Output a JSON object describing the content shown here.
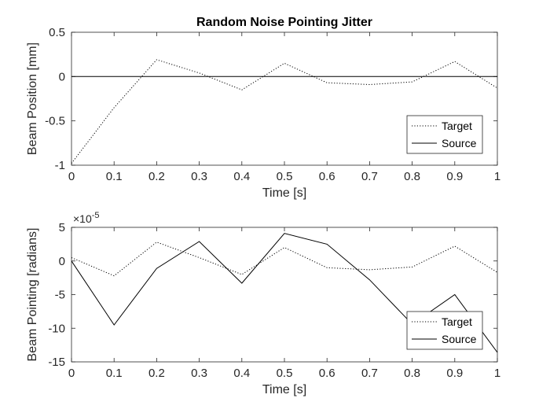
{
  "chart_data": [
    {
      "type": "line",
      "title": "Random Noise Pointing Jitter",
      "xlabel": "Time [s]",
      "ylabel": "Beam Position [mm]",
      "xlim": [
        0,
        1
      ],
      "ylim": [
        -1,
        0.5
      ],
      "xticks": [
        "0",
        "0.1",
        "0.2",
        "0.3",
        "0.4",
        "0.5",
        "0.6",
        "0.7",
        "0.8",
        "0.9",
        "1"
      ],
      "yticks": [
        "-1",
        "-0.5",
        "0",
        "0.5"
      ],
      "x": [
        0,
        0.1,
        0.2,
        0.3,
        0.4,
        0.5,
        0.6,
        0.7,
        0.8,
        0.9,
        1.0
      ],
      "series": [
        {
          "name": "Target",
          "style": "dotted",
          "values": [
            -0.98,
            -0.35,
            0.19,
            0.04,
            -0.15,
            0.15,
            -0.07,
            -0.09,
            -0.06,
            0.17,
            -0.13
          ]
        },
        {
          "name": "Source",
          "style": "solid",
          "values": [
            0,
            0,
            0,
            0,
            0,
            0,
            0,
            0,
            0,
            0,
            0
          ]
        }
      ],
      "legend": {
        "position": "bottom-right",
        "entries": [
          "Target",
          "Source"
        ]
      },
      "grid": false
    },
    {
      "type": "line",
      "title": "",
      "xlabel": "Time [s]",
      "ylabel": "Beam Pointing [radians]",
      "y_exponent_label": "×10",
      "y_exponent_power": "-5",
      "xlim": [
        0,
        1
      ],
      "ylim": [
        -15,
        5
      ],
      "xticks": [
        "0",
        "0.1",
        "0.2",
        "0.3",
        "0.4",
        "0.5",
        "0.6",
        "0.7",
        "0.8",
        "0.9",
        "1"
      ],
      "yticks": [
        "-15",
        "-10",
        "-5",
        "0",
        "5"
      ],
      "x": [
        0,
        0.1,
        0.2,
        0.3,
        0.4,
        0.5,
        0.6,
        0.7,
        0.8,
        0.9,
        1.0
      ],
      "series": [
        {
          "name": "Target",
          "style": "dotted",
          "values": [
            0.5,
            -2.2,
            2.8,
            0.5,
            -2.0,
            2.0,
            -1.0,
            -1.3,
            -0.9,
            2.2,
            -1.7
          ]
        },
        {
          "name": "Source",
          "style": "solid",
          "values": [
            0,
            -9.5,
            -1.1,
            2.9,
            -3.3,
            4.1,
            2.5,
            -2.8,
            -9.4,
            -5.0,
            -13.6
          ]
        }
      ],
      "legend": {
        "position": "bottom-right",
        "entries": [
          "Target",
          "Source"
        ]
      },
      "grid": false
    }
  ]
}
